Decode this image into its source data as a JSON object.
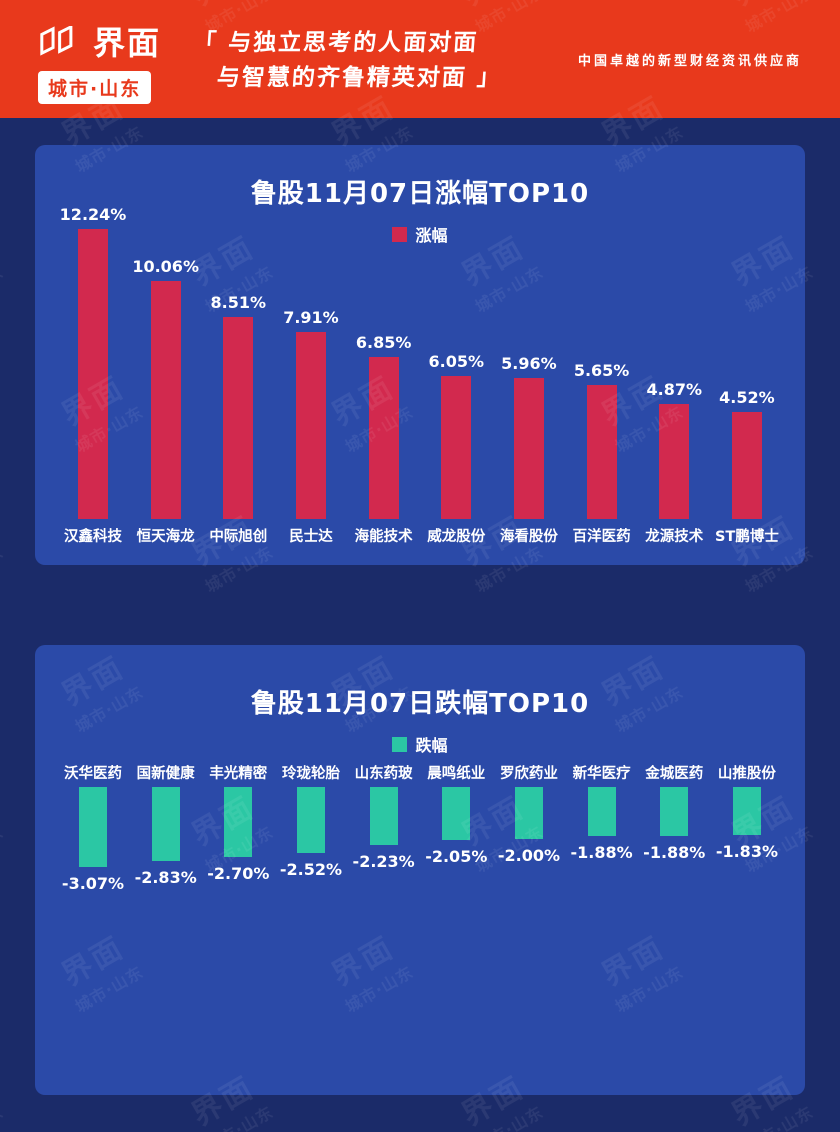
{
  "header": {
    "logo_text": "界面",
    "logo_sub": "城市·山东",
    "slogan_line1": "「 与独立思考的人面对面",
    "slogan_line2": "与智慧的齐鲁精英对面 」",
    "tagline": "中国卓越的新型财经资讯供应商",
    "bg_color": "#E8391C"
  },
  "watermark": {
    "line1": "界面",
    "line2": "城市·山东"
  },
  "colors": {
    "page_background": "#1B2B69",
    "panel_background": "#2B4AA8",
    "gain_bar": "#D2294E",
    "loss_bar": "#2BC7A4"
  },
  "chart_data": [
    {
      "type": "bar",
      "title": "鲁股11月07日涨幅TOP10",
      "legend": "涨幅",
      "bar_color": "#D2294E",
      "direction": "up",
      "categories": [
        "汉鑫科技",
        "恒天海龙",
        "中际旭创",
        "民士达",
        "海能技术",
        "威龙股份",
        "海看股份",
        "百洋医药",
        "龙源技术",
        "ST鹏博士"
      ],
      "values": [
        12.24,
        10.06,
        8.51,
        7.91,
        6.85,
        6.05,
        5.96,
        5.65,
        4.87,
        4.52
      ],
      "value_labels": [
        "12.24%",
        "10.06%",
        "8.51%",
        "7.91%",
        "6.85%",
        "6.05%",
        "5.96%",
        "5.65%",
        "4.87%",
        "4.52%"
      ],
      "xlabel": "",
      "ylabel": "",
      "ylim": [
        0,
        13
      ],
      "grid": false,
      "legend_position": "top-center"
    },
    {
      "type": "bar",
      "title": "鲁股11月07日跌幅TOP10",
      "legend": "跌幅",
      "bar_color": "#2BC7A4",
      "direction": "down",
      "categories": [
        "沃华医药",
        "国新健康",
        "丰光精密",
        "玲珑轮胎",
        "山东药玻",
        "晨鸣纸业",
        "罗欣药业",
        "新华医疗",
        "金城医药",
        "山推股份"
      ],
      "values": [
        -3.07,
        -2.83,
        -2.7,
        -2.52,
        -2.23,
        -2.05,
        -2.0,
        -1.88,
        -1.88,
        -1.83
      ],
      "value_labels": [
        "-3.07%",
        "-2.83%",
        "-2.70%",
        "-2.52%",
        "-2.23%",
        "-2.05%",
        "-2.00%",
        "-1.88%",
        "-1.88%",
        "-1.83%"
      ],
      "xlabel": "",
      "ylabel": "",
      "ylim": [
        -3.5,
        0
      ],
      "grid": false,
      "legend_position": "top-center"
    }
  ]
}
